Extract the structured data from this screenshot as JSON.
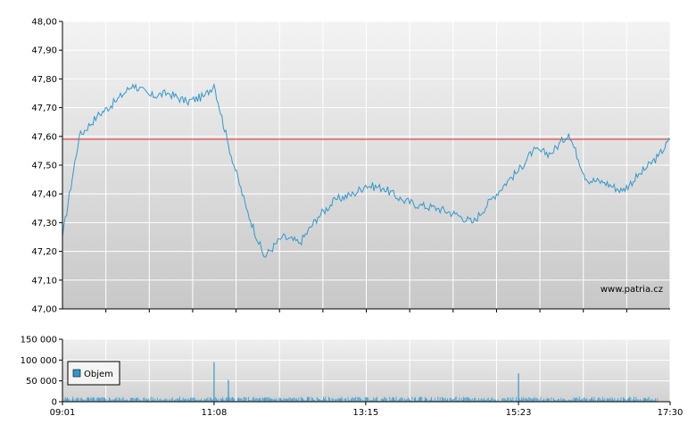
{
  "chart_data": [
    {
      "type": "line",
      "name": "price",
      "title": "",
      "ylim": [
        47.0,
        48.0
      ],
      "yticks": [
        "47,00",
        "47,10",
        "47,20",
        "47,30",
        "47,40",
        "47,50",
        "47,60",
        "47,70",
        "47,80",
        "47,90",
        "48,00"
      ],
      "reference_line": 47.59,
      "watermark": "www.patria.cz",
      "colors": {
        "line": "#3399cc",
        "reference": "#dd2222",
        "grid": "#ffffff"
      },
      "x": [
        "09:01",
        "09:15",
        "09:30",
        "09:45",
        "10:00",
        "10:15",
        "10:30",
        "10:45",
        "11:00",
        "11:08",
        "11:20",
        "11:35",
        "11:50",
        "12:05",
        "12:20",
        "12:35",
        "12:50",
        "13:05",
        "13:15",
        "13:30",
        "13:45",
        "14:00",
        "14:15",
        "14:30",
        "14:45",
        "15:00",
        "15:15",
        "15:23",
        "15:35",
        "15:50",
        "16:05",
        "16:20",
        "16:35",
        "16:50",
        "17:05",
        "17:20",
        "17:30"
      ],
      "values": [
        47.25,
        47.6,
        47.67,
        47.72,
        47.78,
        47.74,
        47.75,
        47.72,
        47.74,
        47.78,
        47.57,
        47.35,
        47.18,
        47.25,
        47.23,
        47.32,
        47.38,
        47.4,
        47.43,
        47.42,
        47.38,
        47.36,
        47.35,
        47.33,
        47.3,
        47.38,
        47.45,
        47.48,
        47.55,
        47.54,
        47.61,
        47.45,
        47.44,
        47.41,
        47.47,
        47.53,
        47.59
      ]
    },
    {
      "type": "bar",
      "name": "volume",
      "legend": "Objem",
      "ylim": [
        0,
        150000
      ],
      "yticks": [
        "0",
        "50 000",
        "100 000",
        "150 000"
      ],
      "xticks": [
        "09:01",
        "11:08",
        "13:15",
        "15:23",
        "17:30"
      ],
      "colors": {
        "bar": "#3399cc"
      },
      "spikes": [
        {
          "time": "11:08",
          "value": 95000
        },
        {
          "time": "11:20",
          "value": 52000
        },
        {
          "time": "15:23",
          "value": 68000
        }
      ],
      "typical_value": 8000
    }
  ]
}
